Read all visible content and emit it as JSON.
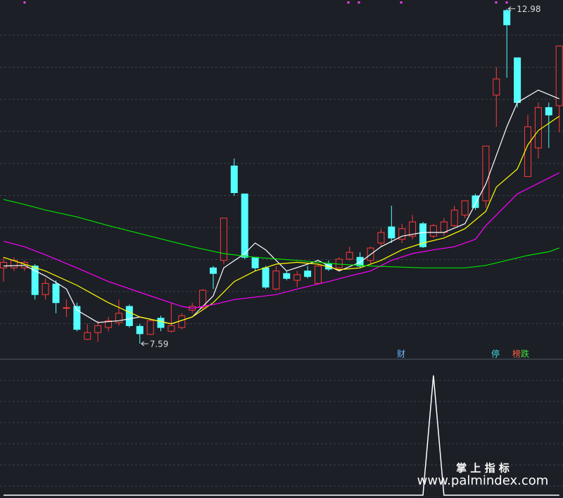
{
  "chart_data": [
    {
      "type": "candlestick",
      "open": [
        8.81,
        8.81,
        8.81,
        8.84,
        8.38,
        8.55,
        8.16,
        8.19,
        7.66,
        7.77,
        7.85,
        7.93,
        8.19,
        7.87,
        7.74,
        8.0,
        7.79,
        7.85,
        8.13,
        8.17,
        8.81,
        8.93,
        10.45,
        10.0,
        8.98,
        8.81,
        8.47,
        8.72,
        8.61,
        8.76,
        8.56,
        8.87,
        8.81,
        8.95,
        8.98,
        8.93,
        9.21,
        9.47,
        9.27,
        9.32,
        9.52,
        9.32,
        9.38,
        9.49,
        9.66,
        9.97,
        9.89,
        11.59,
        12.95,
        12.19,
        10.28,
        10.74,
        11.39,
        11.42
      ],
      "high": [
        8.98,
        8.98,
        8.93,
        8.87,
        8.64,
        8.61,
        8.3,
        8.25,
        7.91,
        7.96,
        8.02,
        8.3,
        8.22,
        7.91,
        8.0,
        8.04,
        8.25,
        8.08,
        8.25,
        8.47,
        8.84,
        9.61,
        10.57,
        10.0,
        8.98,
        8.84,
        8.84,
        8.76,
        8.76,
        8.84,
        8.87,
        8.93,
        8.98,
        9.15,
        9.06,
        9.15,
        9.44,
        9.81,
        9.52,
        9.66,
        9.55,
        9.52,
        9.61,
        9.81,
        9.89,
        10.0,
        10.77,
        12.04,
        12.98,
        12.19,
        11.27,
        11.47,
        11.47,
        12.38
      ],
      "low": [
        8.59,
        8.76,
        8.76,
        8.3,
        8.3,
        8.08,
        8.02,
        7.79,
        7.65,
        7.62,
        7.79,
        7.88,
        7.85,
        7.59,
        7.74,
        7.79,
        7.77,
        7.82,
        8.08,
        8.13,
        8.47,
        8.87,
        9.97,
        8.95,
        8.76,
        8.47,
        8.45,
        8.61,
        8.5,
        8.64,
        8.55,
        8.76,
        8.76,
        8.93,
        8.81,
        8.87,
        9.15,
        9.21,
        9.21,
        9.27,
        9.13,
        9.29,
        9.32,
        9.47,
        9.61,
        9.74,
        9.78,
        11.08,
        11.87,
        11.39,
        10.28,
        10.57,
        10.74,
        10.99
      ],
      "close": [
        8.9,
        8.93,
        8.9,
        8.38,
        8.56,
        8.25,
        8.17,
        7.82,
        7.77,
        7.88,
        7.96,
        8.08,
        7.88,
        7.75,
        7.96,
        7.85,
        7.88,
        8.04,
        8.19,
        8.45,
        8.72,
        9.61,
        10.02,
        8.98,
        8.81,
        8.5,
        8.76,
        8.64,
        8.7,
        8.67,
        8.84,
        8.79,
        8.95,
        9.06,
        8.84,
        9.13,
        9.38,
        9.29,
        9.44,
        9.55,
        9.15,
        9.49,
        9.55,
        9.74,
        9.89,
        9.78,
        10.77,
        11.85,
        12.72,
        11.47,
        11.08,
        11.39,
        11.27,
        12.38
      ],
      "up_color": "#ff3a3a",
      "down_color": "#54ffff",
      "ylim": [
        7.34,
        13.12
      ],
      "series": [
        {
          "color": "#ffffff",
          "x": [
            0,
            2,
            4,
            6,
            7,
            9,
            11,
            13,
            16,
            18,
            20,
            21,
            23,
            24,
            25,
            27,
            29,
            30,
            32,
            34,
            36,
            38,
            40,
            42,
            44,
            46,
            48,
            49,
            51,
            53
          ],
          "values": [
            8.84,
            8.85,
            8.68,
            8.47,
            8.13,
            7.93,
            7.96,
            8.02,
            7.91,
            8.02,
            8.36,
            8.81,
            9.04,
            9.21,
            9.1,
            8.76,
            8.87,
            8.93,
            8.76,
            8.9,
            9.15,
            9.32,
            9.38,
            9.38,
            9.52,
            10.16,
            11.08,
            11.47,
            11.67,
            11.53
          ]
        },
        {
          "color": "#ffff00",
          "x": [
            0,
            2,
            4,
            7,
            10,
            13,
            16,
            18,
            20,
            22,
            24,
            26,
            28,
            30,
            32,
            34,
            36,
            38,
            40,
            42,
            44,
            46,
            47,
            49,
            50,
            51,
            53
          ],
          "values": [
            8.98,
            8.87,
            8.76,
            8.53,
            8.25,
            8.02,
            7.91,
            8.02,
            8.25,
            8.59,
            8.76,
            8.87,
            8.9,
            8.87,
            8.78,
            8.81,
            8.93,
            9.1,
            9.21,
            9.29,
            9.44,
            9.72,
            10.11,
            10.4,
            10.79,
            11.02,
            11.25
          ]
        },
        {
          "color": "#ff00ff",
          "x": [
            0,
            2,
            4,
            7,
            10,
            14,
            17,
            18,
            20,
            22,
            24,
            26,
            28,
            31,
            33,
            35,
            37,
            39,
            41,
            43,
            45,
            46,
            48,
            49,
            51,
            53
          ],
          "values": [
            9.24,
            9.15,
            9.02,
            8.81,
            8.59,
            8.36,
            8.19,
            8.16,
            8.22,
            8.3,
            8.34,
            8.38,
            8.47,
            8.59,
            8.68,
            8.76,
            8.93,
            9.04,
            9.1,
            9.15,
            9.27,
            9.49,
            9.83,
            10.0,
            10.17,
            10.34
          ]
        },
        {
          "color": "#00e000",
          "x": [
            0,
            2,
            4,
            7,
            10,
            14,
            18,
            21,
            24,
            28,
            32,
            35,
            40,
            44,
            46,
            48,
            50,
            52,
            53
          ],
          "values": [
            9.91,
            9.83,
            9.74,
            9.63,
            9.49,
            9.32,
            9.15,
            9.04,
            8.98,
            8.93,
            8.87,
            8.84,
            8.81,
            8.81,
            8.85,
            8.93,
            9.01,
            9.07,
            9.13
          ]
        }
      ],
      "annotations": [
        "财",
        "停",
        "榜",
        "跌"
      ]
    },
    {
      "type": "line",
      "color": "#ffffff",
      "ylim": [
        0,
        1
      ],
      "values": [
        0,
        0,
        0,
        0,
        0,
        0,
        0,
        0,
        0,
        0,
        0,
        0,
        0,
        0,
        0,
        0,
        0,
        0,
        0,
        0,
        0,
        0,
        0,
        0,
        0,
        0,
        0,
        0,
        0,
        0,
        0,
        0,
        0,
        0,
        0,
        0,
        0,
        0,
        0,
        0,
        0,
        1,
        0,
        0,
        0,
        0,
        0,
        0,
        0,
        0,
        0,
        0,
        0,
        0
      ]
    }
  ],
  "watermark": {
    "title": "掌 上 指 标",
    "url": "www.palmindex.com"
  }
}
